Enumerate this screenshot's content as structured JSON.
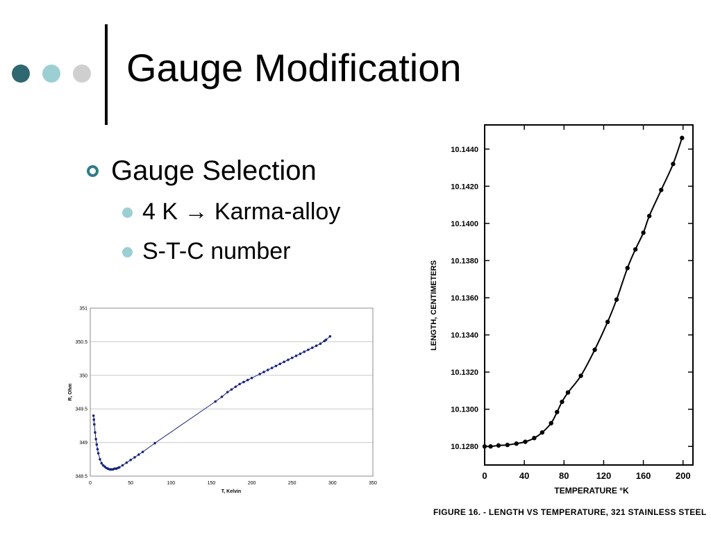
{
  "slide": {
    "title": "Gauge Modification",
    "bullets": [
      {
        "text": "Gauge Selection",
        "level": 1
      },
      {
        "text": "4 K → Karma-alloy",
        "level": 2
      },
      {
        "text": "S-T-C number",
        "level": 2
      }
    ],
    "dot_colors": [
      "#2f6870",
      "#9ccfd3",
      "#cfcfcf"
    ]
  },
  "chart_data": [
    {
      "type": "scatter",
      "title": "",
      "xlabel": "T, Kelvin",
      "ylabel": "R, Ohm",
      "xlim": [
        0,
        350
      ],
      "ylim": [
        348.5,
        351
      ],
      "xticks": [
        "0",
        "50",
        "100",
        "150",
        "200",
        "250",
        "300",
        "350"
      ],
      "yticks": [
        "348.5",
        "349",
        "349.5",
        "350",
        "350.5",
        "351"
      ],
      "grid": true,
      "series_color": "#1a237e",
      "series": [
        {
          "name": "",
          "x": [
            4,
            4.5,
            5,
            6,
            7,
            8,
            9,
            10,
            12,
            14,
            16,
            18,
            20,
            22,
            24,
            26,
            28,
            30,
            32,
            34,
            36,
            40,
            45,
            50,
            55,
            60,
            65,
            80,
            155,
            163,
            170,
            175,
            180,
            185,
            190,
            195,
            200,
            210,
            215,
            220,
            225,
            230,
            235,
            240,
            245,
            250,
            255,
            260,
            265,
            270,
            275,
            280,
            285,
            290,
            292,
            297
          ],
          "y": [
            349.4,
            349.34,
            349.27,
            349.15,
            349.05,
            348.97,
            348.9,
            348.84,
            348.75,
            348.69,
            348.66,
            348.64,
            348.62,
            348.61,
            348.6,
            348.6,
            348.6,
            348.61,
            348.61,
            348.62,
            348.63,
            348.66,
            348.7,
            348.74,
            348.78,
            348.82,
            348.86,
            348.99,
            349.61,
            349.68,
            349.75,
            349.79,
            349.83,
            349.87,
            349.9,
            349.93,
            349.96,
            350.02,
            350.05,
            350.08,
            350.11,
            350.14,
            350.17,
            350.2,
            350.23,
            350.26,
            350.29,
            350.32,
            350.35,
            350.38,
            350.41,
            350.44,
            350.47,
            350.51,
            350.53,
            350.58
          ]
        }
      ]
    },
    {
      "type": "line",
      "title": "FIGURE 16. - LENGTH VS TEMPERATURE, 321 STAINLESS STEEL",
      "xlabel": "TEMPERATURE °K",
      "ylabel": "LENGTH, CENTIMETERS",
      "xlim": [
        0,
        210
      ],
      "ylim": [
        10.127,
        10.1453
      ],
      "xticks": [
        "0",
        "40",
        "80",
        "120",
        "160",
        "200"
      ],
      "yticks": [
        "10.1280",
        "10.1300",
        "10.1320",
        "10.1340",
        "10.1360",
        "10.1380",
        "10.1400",
        "10.1420",
        "10.1440"
      ],
      "grid": false,
      "series_color": "#000000",
      "series": [
        {
          "name": "",
          "x": [
            0,
            6,
            14,
            23,
            32,
            41,
            50,
            58,
            67,
            73,
            78,
            84,
            97,
            111,
            124,
            133,
            144,
            152,
            160,
            166,
            178,
            190,
            199
          ],
          "y": [
            10.128,
            10.128,
            10.12805,
            10.12808,
            10.12815,
            10.12825,
            10.12845,
            10.12875,
            10.12925,
            10.12985,
            10.1304,
            10.1309,
            10.1318,
            10.1332,
            10.1347,
            10.1359,
            10.1376,
            10.1386,
            10.1395,
            10.1404,
            10.1418,
            10.1432,
            10.1446
          ]
        }
      ]
    }
  ]
}
